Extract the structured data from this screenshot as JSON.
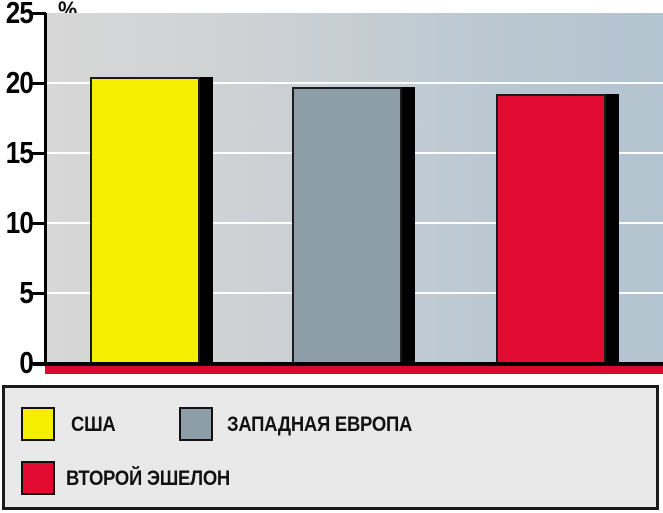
{
  "chart_data": {
    "type": "bar",
    "title": "",
    "xlabel": "",
    "ylabel": "%",
    "categories": [
      "США",
      "ЗАПАДНАЯ ЕВРОПА",
      "ВТОРОЙ ЭШЕЛОН"
    ],
    "values": [
      20.4,
      19.7,
      19.2
    ],
    "bar_colors": [
      "#f6ee00",
      "#8d9ea9",
      "#e20b31"
    ],
    "ylim": [
      0,
      25
    ],
    "yticks": [
      25,
      20,
      15,
      10,
      5,
      0
    ],
    "grid": true,
    "gridline_color": "#ffffff",
    "legend_position": "bottom"
  },
  "axis": {
    "percent_label": "%"
  },
  "legend": {
    "items": [
      {
        "label": "США",
        "color": "#f6ee00"
      },
      {
        "label": "ЗАПАДНАЯ ЕВРОПА",
        "color": "#8d9ea9"
      },
      {
        "label": "ВТОРОЙ ЭШЕЛОН",
        "color": "#e20b31"
      }
    ]
  },
  "colors": {
    "plot_bg_left": "#d7d7d7",
    "plot_bg_right": "#b3c3cf",
    "baseline": "#000000",
    "baseline_strip": "#d40b2e",
    "legend_bg": "#e9e9e9",
    "border": "#1a1a1a"
  }
}
